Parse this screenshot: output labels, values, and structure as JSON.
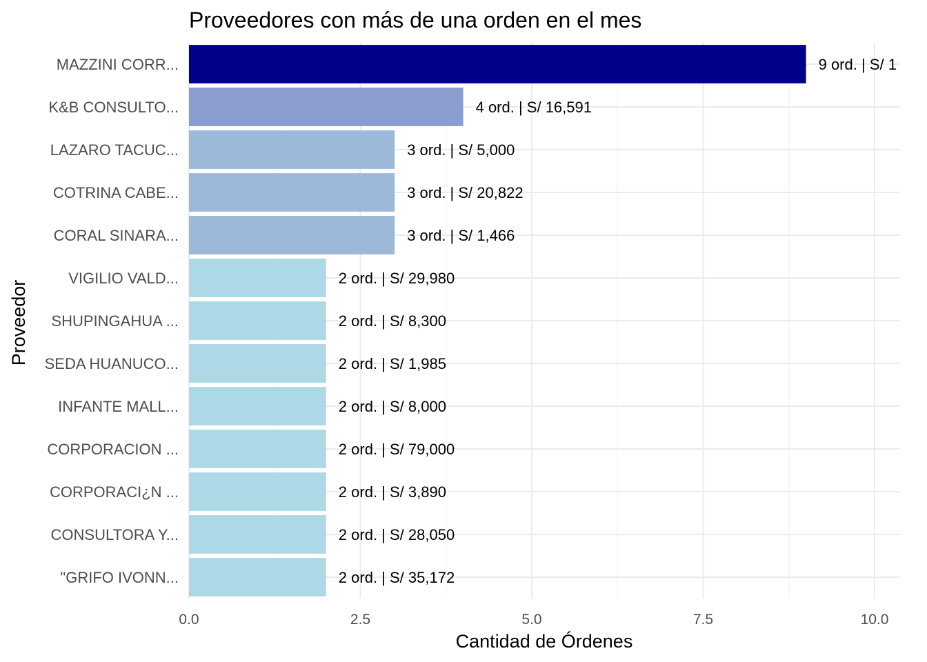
{
  "chart_data": {
    "type": "bar",
    "orientation": "horizontal",
    "title": "Proveedores con más de una orden en el mes",
    "xlabel": "Cantidad de Órdenes",
    "ylabel": "Proveedor",
    "xlim": [
      0,
      10.0
    ],
    "xticks": [
      "0.0",
      "2.5",
      "5.0",
      "7.5",
      "10.0"
    ],
    "xtick_values": [
      0,
      2.5,
      5,
      7.5,
      10
    ],
    "grid": true,
    "legend": "none",
    "categories": [
      "MAZZINI CORR...",
      "K&B CONSULTO...",
      "LAZARO TACUC...",
      "COTRINA CABE...",
      "CORAL SINARA...",
      "VIGILIO VALD...",
      "SHUPINGAHUA ...",
      "SEDA HUANUCO...",
      "INFANTE MALL...",
      "CORPORACION ...",
      "CORPORACI¿N ...",
      "CONSULTORA Y...",
      "\"GRIFO IVONN..."
    ],
    "values": [
      9,
      4,
      3,
      3,
      3,
      2,
      2,
      2,
      2,
      2,
      2,
      2,
      2
    ],
    "data_labels": [
      "9 ord. | S/ 1",
      "4 ord. | S/ 16,591",
      "3 ord. | S/ 5,000",
      "3 ord. | S/ 20,822",
      "3 ord. | S/ 1,466",
      "2 ord. | S/ 29,980",
      "2 ord. | S/ 8,300",
      "2 ord. | S/ 1,985",
      "2 ord. | S/ 8,000",
      "2 ord. | S/ 79,000",
      "2 ord. | S/ 3,890",
      "2 ord. | S/ 28,050",
      "2 ord. | S/ 35,172"
    ],
    "colors": {
      "9": "#00008b",
      "4": "#8b9ccf",
      "3": "#9db9da",
      "2": "#add8e6"
    }
  }
}
